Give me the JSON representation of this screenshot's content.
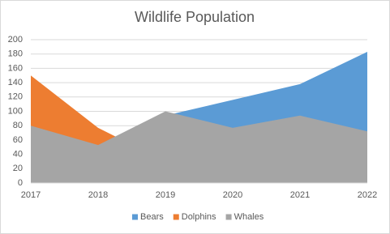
{
  "chart_data": {
    "type": "area",
    "title": "Wildlife Population",
    "categories": [
      "2017",
      "2018",
      "2019",
      "2020",
      "2021",
      "2022"
    ],
    "series": [
      {
        "name": "Bears",
        "color": "#5b9bd5",
        "values": [
          50,
          45,
          94,
          116,
          138,
          183
        ]
      },
      {
        "name": "Dolphins",
        "color": "#ed7d31",
        "values": [
          150,
          77,
          30,
          25,
          20,
          15
        ]
      },
      {
        "name": "Whales",
        "color": "#a5a5a5",
        "values": [
          80,
          53,
          100,
          77,
          94,
          72
        ]
      }
    ],
    "ylim": [
      0,
      200
    ],
    "yticks": [
      0,
      20,
      40,
      60,
      80,
      100,
      120,
      140,
      160,
      180,
      200
    ],
    "grid": true,
    "legend": "bottom"
  }
}
